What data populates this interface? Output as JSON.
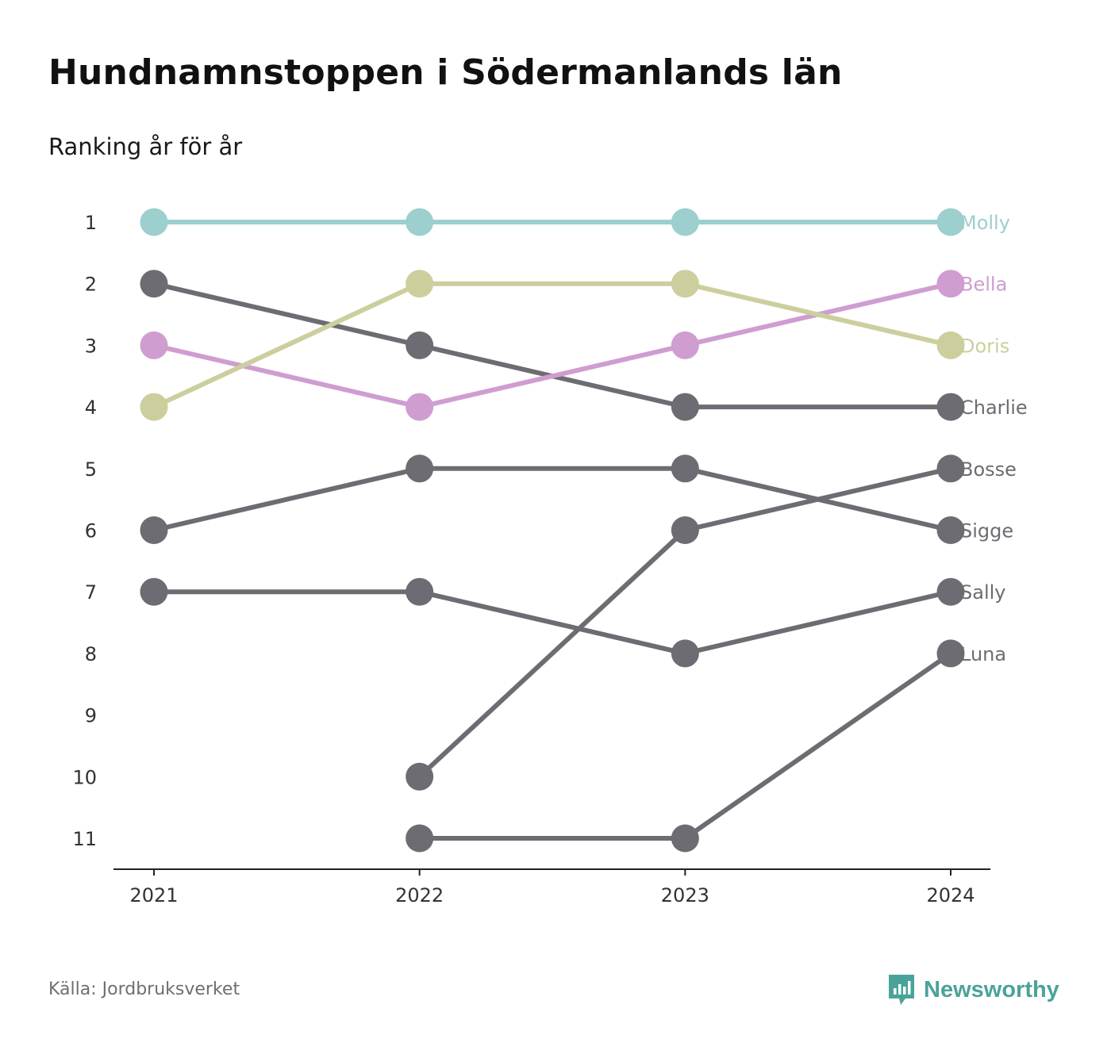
{
  "header": {
    "title": "Hundnamnstoppen i Södermanlands län",
    "subtitle": "Ranking år för år"
  },
  "footer": {
    "source": "Källa: Jordbruksverket",
    "brand": "Newsworthy",
    "brand_icon": "newsworthy-logo-icon"
  },
  "colors": {
    "Molly": "#9ccfcd",
    "Bella": "#cf9dd0",
    "Doris": "#cccf9d",
    "default": "#6d6c72",
    "axis": "#222222",
    "brand": "#4aa39a"
  },
  "chart_data": {
    "type": "line",
    "subtype": "bump",
    "x": [
      "2021",
      "2022",
      "2023",
      "2024"
    ],
    "y_ticks": [
      "1",
      "2",
      "3",
      "4",
      "5",
      "6",
      "7",
      "8",
      "9",
      "10",
      "11"
    ],
    "ylim": [
      1,
      11
    ],
    "y_reversed": true,
    "grid": false,
    "legend": "end-labels",
    "series": [
      {
        "name": "Molly",
        "values": [
          1,
          1,
          1,
          1
        ]
      },
      {
        "name": "Bella",
        "values": [
          3,
          4,
          3,
          2
        ]
      },
      {
        "name": "Doris",
        "values": [
          4,
          2,
          2,
          3
        ]
      },
      {
        "name": "Charlie",
        "values": [
          2,
          3,
          4,
          4
        ]
      },
      {
        "name": "Bosse",
        "values": [
          null,
          10,
          6,
          5
        ]
      },
      {
        "name": "Sigge",
        "values": [
          6,
          5,
          5,
          6
        ]
      },
      {
        "name": "Sally",
        "values": [
          7,
          7,
          8,
          7
        ]
      },
      {
        "name": "Luna",
        "values": [
          null,
          11,
          11,
          8
        ]
      }
    ]
  }
}
